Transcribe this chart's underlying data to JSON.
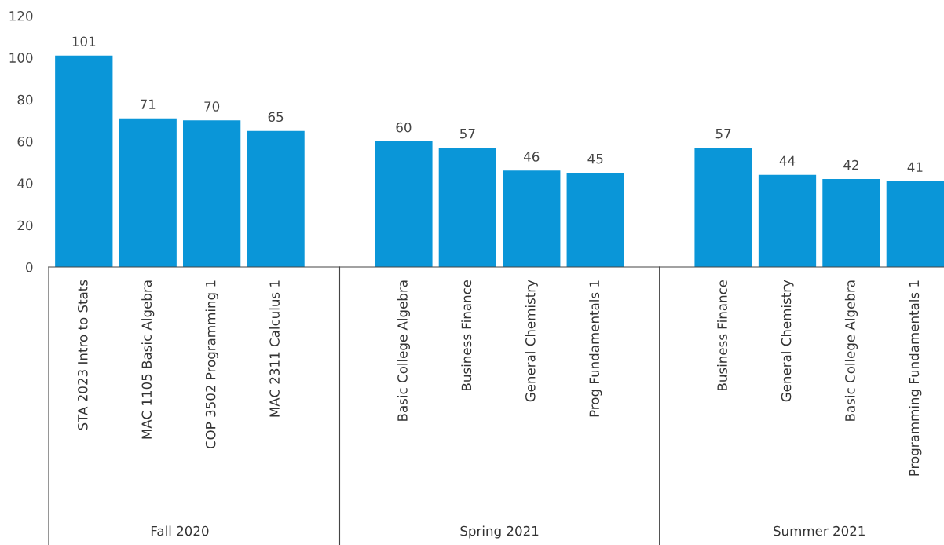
{
  "chart_data": {
    "type": "bar",
    "categories": [
      "STA 2023 Intro to Stats",
      "MAC 1105 Basic Algebra",
      "COP 3502 Programming 1",
      "MAC 2311 Calculus 1",
      null,
      "Basic College Algebra",
      "Business Finance",
      "General Chemistry",
      "Prog Fundamentals 1",
      null,
      "Business Finance",
      "General Chemistry",
      "Basic College Algebra",
      "Programming Fundamentals 1"
    ],
    "values": [
      101,
      71,
      70,
      65,
      null,
      60,
      57,
      46,
      45,
      null,
      57,
      44,
      42,
      41
    ],
    "color": "#0a96d8",
    "ylim": [
      0,
      120
    ],
    "yticks": [
      0,
      20,
      40,
      60,
      80,
      100,
      120
    ],
    "data_labels": true,
    "grid": false,
    "legend": false,
    "annotations": [
      "Fall 2020",
      "Spring 2021",
      "Summer 2021"
    ]
  }
}
